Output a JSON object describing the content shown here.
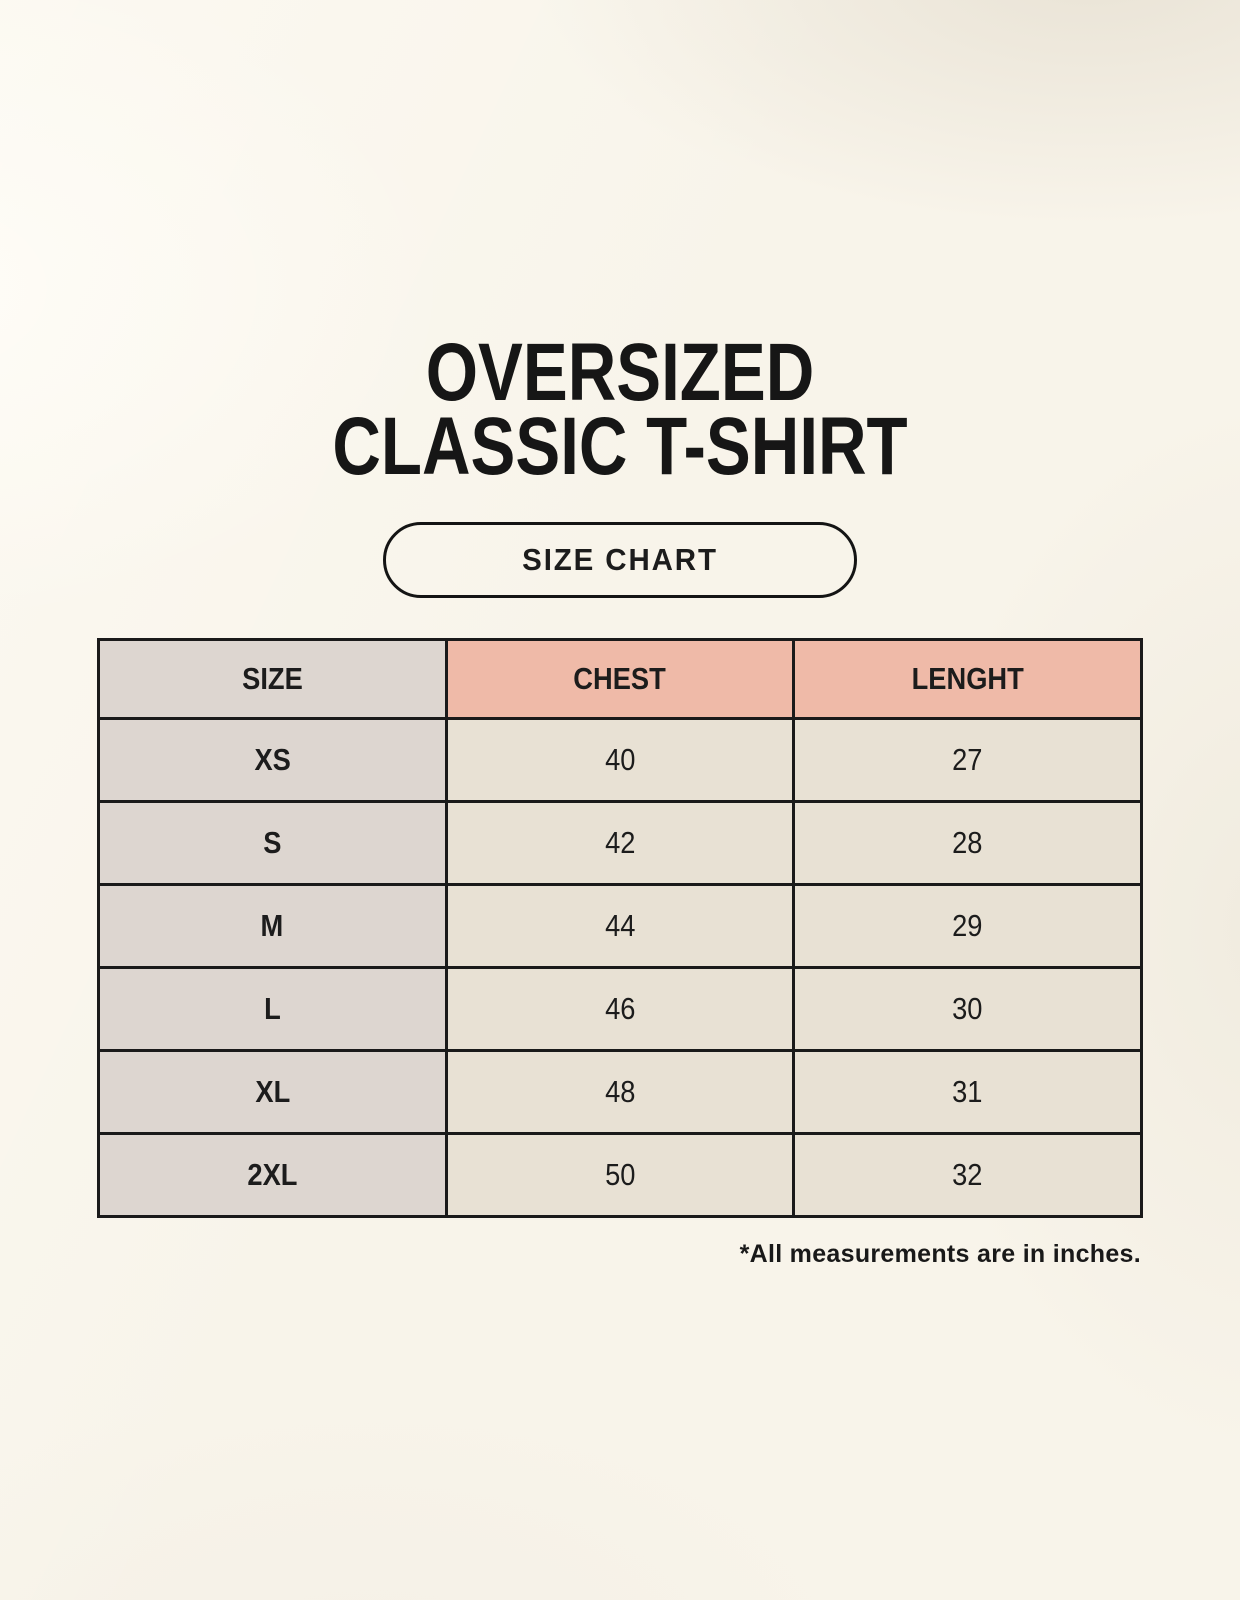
{
  "colors": {
    "background": "#f8f4ea",
    "table_border": "#1a1a1a",
    "size_column_bg": "#ddd6d0",
    "header_accent_bg": "#efbaa8",
    "data_cell_bg": "#e8e1d4",
    "text": "#1c1c1c"
  },
  "title": {
    "line1": "OVERSIZED",
    "line2": "CLASSIC T-SHIRT"
  },
  "badge": {
    "label": "SIZE CHART"
  },
  "table": {
    "headers": [
      "SIZE",
      "CHEST",
      "LENGHT"
    ],
    "rows": [
      {
        "size": "XS",
        "chest": "40",
        "length": "27"
      },
      {
        "size": "S",
        "chest": "42",
        "length": "28"
      },
      {
        "size": "M",
        "chest": "44",
        "length": "29"
      },
      {
        "size": "L",
        "chest": "46",
        "length": "30"
      },
      {
        "size": "XL",
        "chest": "48",
        "length": "31"
      },
      {
        "size": "2XL",
        "chest": "50",
        "length": "32"
      }
    ]
  },
  "footnote": "*All measurements are in inches.",
  "chart_data": {
    "type": "table",
    "title": "OVERSIZED CLASSIC T-SHIRT SIZE CHART",
    "columns": [
      "SIZE",
      "CHEST",
      "LENGHT"
    ],
    "rows": [
      [
        "XS",
        40,
        27
      ],
      [
        "S",
        42,
        28
      ],
      [
        "M",
        44,
        29
      ],
      [
        "L",
        46,
        30
      ],
      [
        "XL",
        48,
        31
      ],
      [
        "2XL",
        50,
        32
      ]
    ],
    "note": "*All measurements are in inches."
  }
}
